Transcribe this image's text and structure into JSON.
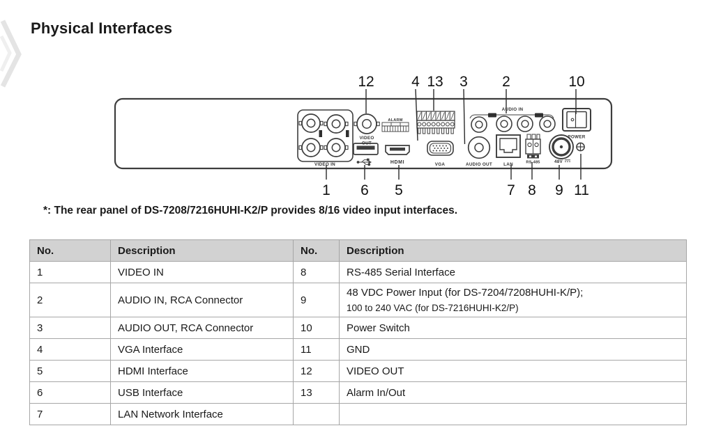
{
  "page": {
    "title": "Physical Interfaces",
    "note": "*: The rear panel of DS-7208/7216HUHI-K2/P provides 8/16 video input interfaces."
  },
  "diagram": {
    "labels": {
      "video_in": "VIDEO IN",
      "video_out_1": "VIDEO",
      "video_out_2": "OUT",
      "alarm": "ALARM",
      "hdmi": "HDMI",
      "vga": "VGA",
      "audio_in": "AUDIO IN",
      "audio_out": "AUDIO OUT",
      "lan": "LAN",
      "rs485": "RS-485",
      "power": "POWER",
      "power_input": "48V"
    },
    "callouts_top": [
      "12",
      "4",
      "13",
      "3",
      "2",
      "10"
    ],
    "callouts_bottom": [
      "1",
      "6",
      "5",
      "7",
      "8",
      "9",
      "11"
    ]
  },
  "table": {
    "headers": [
      "No.",
      "Description",
      "No.",
      "Description"
    ],
    "rows": [
      {
        "no_left": "1",
        "desc_left": "VIDEO IN",
        "no_right": "8",
        "desc_right": "RS-485 Serial Interface",
        "desc_right_2": ""
      },
      {
        "no_left": "2",
        "desc_left": "AUDIO IN, RCA Connector",
        "no_right": "9",
        "desc_right": "48 VDC Power Input (for DS-7204/7208HUHI-K/P);",
        "desc_right_2": "100 to 240 VAC (for DS-7216HUHI-K2/P)"
      },
      {
        "no_left": "3",
        "desc_left": "AUDIO OUT, RCA Connector",
        "no_right": "10",
        "desc_right": "Power Switch",
        "desc_right_2": ""
      },
      {
        "no_left": "4",
        "desc_left": "VGA Interface",
        "no_right": "11",
        "desc_right": "GND",
        "desc_right_2": ""
      },
      {
        "no_left": "5",
        "desc_left": "HDMI Interface",
        "no_right": "12",
        "desc_right": "VIDEO OUT",
        "desc_right_2": ""
      },
      {
        "no_left": "6",
        "desc_left": "USB Interface",
        "no_right": "13",
        "desc_right": "Alarm In/Out",
        "desc_right_2": ""
      },
      {
        "no_left": "7",
        "desc_left": "LAN Network Interface",
        "no_right": "",
        "desc_right": "",
        "desc_right_2": ""
      }
    ]
  }
}
